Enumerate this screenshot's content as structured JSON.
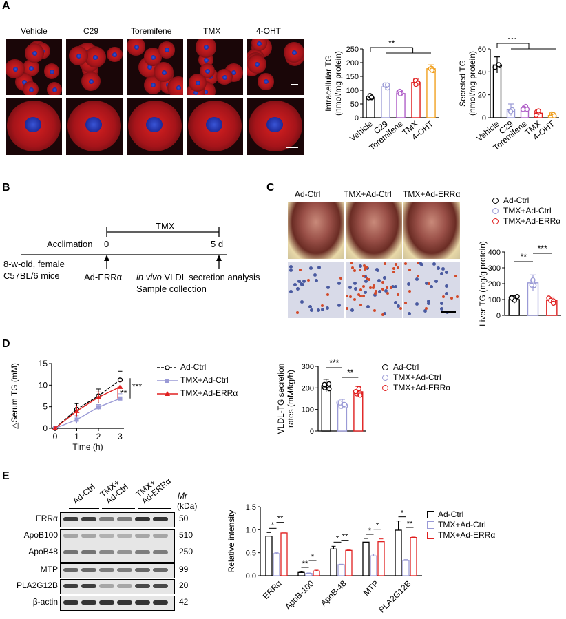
{
  "panels": {
    "A": "A",
    "B": "B",
    "C": "C",
    "D": "D",
    "E": "E"
  },
  "colors": {
    "black": "#000000",
    "lavender": "#9a9ad6",
    "purple": "#b060c8",
    "red": "#e02020",
    "orange": "#f0a020",
    "gray": "#8a8ab0"
  },
  "panelA": {
    "micro_titles": [
      "Vehicle",
      "C29",
      "Toremifene",
      "TMX",
      "4-OHT"
    ]
  },
  "panelB": {
    "tmx": "TMX",
    "acclimation": "Acclimation",
    "t0": "0",
    "t5": "5 d",
    "mice_line1": "8-w-old, female",
    "mice_line2": "C57BL/6 mice",
    "ad_err": "Ad-ERRα",
    "in_vivo": "in vivo",
    "vldl_text": " VLDL secretion analysis",
    "sample": "Sample collection"
  },
  "panelC": {
    "titles": [
      "Ad-Ctrl",
      "TMX+Ad-Ctrl",
      "TMX+Ad-ERRα"
    ],
    "legend": [
      "Ad-Ctrl",
      "TMX+Ad-Ctrl",
      "TMX+Ad-ERRα"
    ]
  },
  "panelE": {
    "header_groups": [
      "Ad-Ctrl",
      "TMX+\nAd-Ctrl",
      "TMX+\nAd-ERRα"
    ],
    "mr_label": "Mr",
    "kda_label": "(kDa)",
    "blots": [
      {
        "name": "ERRα",
        "kda": "50"
      },
      {
        "name": "ApoB100",
        "kda": "510"
      },
      {
        "name": "ApoB48",
        "kda": "250"
      },
      {
        "name": "MTP",
        "kda": "99"
      },
      {
        "name": "PLA2G12B",
        "kda": "20"
      },
      {
        "name": "β-actin",
        "kda": "42"
      }
    ]
  },
  "chart_data": [
    {
      "id": "intracellular",
      "type": "bar",
      "ylabel": "Intracellular TG",
      "ylabel2": "(nmol/mg protein)",
      "categories": [
        "Vehicle",
        "C29",
        "Toremifene",
        "TMX",
        "4-OHT"
      ],
      "values": [
        72,
        112,
        88,
        128,
        178
      ],
      "errors": [
        6,
        12,
        10,
        12,
        14
      ],
      "colors": [
        "#000000",
        "#9a9ad6",
        "#b060c8",
        "#e02020",
        "#f0a020"
      ],
      "yticks": [
        0,
        50,
        100,
        150,
        200,
        250
      ],
      "ylim": [
        0,
        250
      ],
      "significance": "**"
    },
    {
      "id": "secreted",
      "type": "bar",
      "ylabel": "Secreted TG",
      "ylabel2": "(nmol/mg protein)",
      "categories": [
        "Vehicle",
        "C29",
        "Toremifene",
        "TMX",
        "4-OHT"
      ],
      "values": [
        46,
        7,
        8,
        4,
        2
      ],
      "errors": [
        7,
        5,
        2,
        1.5,
        1
      ],
      "colors": [
        "#000000",
        "#9a9ad6",
        "#b060c8",
        "#e02020",
        "#f0a020"
      ],
      "yticks": [
        0,
        20,
        40,
        60
      ],
      "ylim": [
        0,
        60
      ],
      "significance": "***"
    },
    {
      "id": "liverTG",
      "type": "bar",
      "ylabel": "Liver TG (mg/g protein)",
      "categories": [
        "Ad-Ctrl",
        "TMX+Ad-Ctrl",
        "TMX+Ad-ERRα"
      ],
      "values": [
        100,
        205,
        95
      ],
      "errors": [
        25,
        50,
        20
      ],
      "colors": [
        "#000000",
        "#9a9ad6",
        "#e02020"
      ],
      "yticks": [
        0,
        100,
        200,
        300,
        400
      ],
      "ylim": [
        0,
        400
      ],
      "significance": [
        "**",
        "***"
      ]
    },
    {
      "id": "serumTG",
      "type": "line",
      "ylabel": "△Serum TG (mM)",
      "xlabel": "Time (h)",
      "x": [
        0,
        1,
        2,
        3
      ],
      "xticks": [
        "0",
        "1",
        "2",
        "3"
      ],
      "yticks": [
        0,
        5,
        10,
        15
      ],
      "ylim": [
        0,
        15
      ],
      "series": [
        {
          "name": "Ad-Ctrl",
          "values": [
            0,
            4.4,
            7.5,
            11.2
          ],
          "errors": [
            0,
            1.3,
            1.6,
            2.0
          ],
          "color": "#000000"
        },
        {
          "name": "TMX+Ad-Ctrl",
          "values": [
            0,
            2.0,
            4.9,
            6.9
          ],
          "errors": [
            0,
            0.9,
            0.6,
            1.1
          ],
          "color": "#9a9ad6"
        },
        {
          "name": "TMX+Ad-ERRα",
          "values": [
            0,
            4.0,
            7.2,
            9.6
          ],
          "errors": [
            0,
            1.2,
            1.2,
            1.3
          ],
          "color": "#e02020"
        }
      ],
      "significance": [
        "**",
        "***"
      ]
    },
    {
      "id": "vldl",
      "type": "bar",
      "ylabel": "VLDL-TG secretion",
      "ylabel2": "rates (mM/kg/h)",
      "categories": [
        "Ad-Ctrl",
        "TMX+Ad-Ctrl",
        "TMX+Ad-ERRα"
      ],
      "values": [
        210,
        125,
        182
      ],
      "errors": [
        30,
        22,
        25
      ],
      "colors": [
        "#000000",
        "#9a9ad6",
        "#e02020"
      ],
      "yticks": [
        0,
        100,
        200,
        300
      ],
      "ylim": [
        0,
        300
      ],
      "significance": [
        "***",
        "**"
      ]
    },
    {
      "id": "relint",
      "type": "bar",
      "ylabel": "Relative intensity",
      "categories": [
        "ERRα",
        "ApoB-100",
        "ApoB-48",
        "MTP",
        "PLA2G12B"
      ],
      "yticks": [
        "0.0",
        "0.5",
        "1.0",
        "1.5"
      ],
      "ylim": [
        0,
        1.5
      ],
      "series": [
        {
          "name": "Ad-Ctrl",
          "values": [
            0.86,
            0.07,
            0.58,
            0.73,
            0.99
          ],
          "errors": [
            0.08,
            0.02,
            0.06,
            0.08,
            0.2
          ],
          "color": "#000000"
        },
        {
          "name": "TMX+Ad-Ctrl",
          "values": [
            0.48,
            0.05,
            0.24,
            0.43,
            0.33
          ],
          "errors": [
            0.02,
            0.01,
            0.01,
            0.04,
            0.02
          ],
          "color": "#9a9ad6"
        },
        {
          "name": "TMX+Ad-ERRα",
          "values": [
            0.93,
            0.1,
            0.55,
            0.74,
            0.83
          ],
          "errors": [
            0.02,
            0.02,
            0.01,
            0.06,
            0.01
          ],
          "color": "#e02020"
        }
      ],
      "sig_pairs": [
        [
          "*",
          "**"
        ],
        [
          "**",
          "*"
        ],
        [
          "*",
          "**"
        ],
        [
          "*",
          "*"
        ],
        [
          "*",
          "**"
        ]
      ]
    }
  ]
}
